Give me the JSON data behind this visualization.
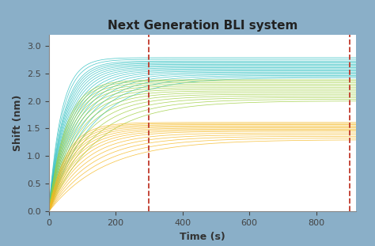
{
  "title": "Next Generation BLI system",
  "xlabel": "Time (s)",
  "ylabel": "Shift (nm)",
  "xlim": [
    0,
    920
  ],
  "ylim": [
    0.0,
    3.2
  ],
  "yticks": [
    0.0,
    0.5,
    1.0,
    1.5,
    2.0,
    2.5,
    3.0
  ],
  "xticks": [
    0,
    200,
    400,
    600,
    800
  ],
  "vline1": 300,
  "vline2": 900,
  "background_outer": "#8aafc8",
  "background_inner": "#ffffff",
  "title_fontsize": 11,
  "label_fontsize": 9,
  "tick_fontsize": 8,
  "cyan_group": {
    "n_curves": 18,
    "plateau_values": [
      2.42,
      2.44,
      2.46,
      2.48,
      2.5,
      2.52,
      2.54,
      2.56,
      2.58,
      2.6,
      2.62,
      2.64,
      2.66,
      2.68,
      2.7,
      2.72,
      2.75,
      2.78
    ],
    "rise_speeds": [
      0.008,
      0.009,
      0.01,
      0.011,
      0.012,
      0.013,
      0.014,
      0.015,
      0.016,
      0.017,
      0.018,
      0.019,
      0.02,
      0.021,
      0.022,
      0.023,
      0.025,
      0.027
    ],
    "color": "#2bbfc0"
  },
  "green_group": {
    "n_curves": 14,
    "plateau_values": [
      2.0,
      2.03,
      2.06,
      2.09,
      2.12,
      2.15,
      2.18,
      2.21,
      2.24,
      2.27,
      2.3,
      2.33,
      2.36,
      2.38
    ],
    "rise_speeds": [
      0.007,
      0.008,
      0.009,
      0.01,
      0.011,
      0.012,
      0.013,
      0.014,
      0.015,
      0.016,
      0.017,
      0.018,
      0.019,
      0.02
    ],
    "color": "#9bcd3a"
  },
  "orange_group": {
    "n_curves": 14,
    "plateau_values": [
      1.3,
      1.33,
      1.36,
      1.39,
      1.42,
      1.45,
      1.47,
      1.49,
      1.51,
      1.53,
      1.55,
      1.57,
      1.59,
      1.61
    ],
    "rise_speeds": [
      0.006,
      0.007,
      0.008,
      0.009,
      0.01,
      0.011,
      0.012,
      0.013,
      0.014,
      0.015,
      0.016,
      0.017,
      0.018,
      0.019
    ],
    "color": "#f5b820"
  }
}
